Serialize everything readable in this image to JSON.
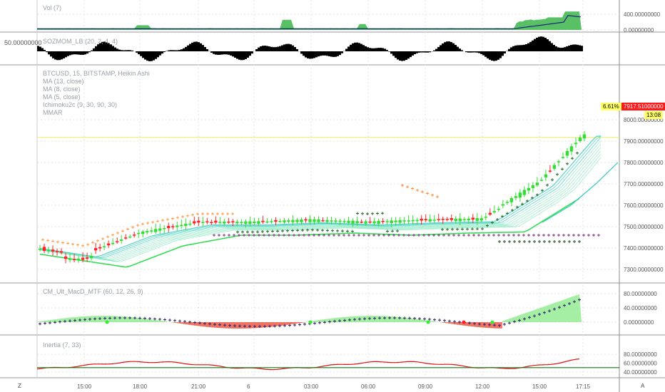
{
  "panels": {
    "vol": {
      "title": "Vol (7)",
      "ticks": [
        "400.00000000",
        "0.00000000"
      ]
    },
    "sozmom": {
      "title": "SOZMOM_LB (20, 2, 4, 4)",
      "left_value": "50.00000000"
    },
    "main": {
      "symbol": "BTCUSD, 15, BITSTAMP, Heikin Ashi",
      "indicators": [
        "MA (13, close)",
        "MA (8, close)",
        "MA (5, close)",
        "Ichimoku2c (9, 30, 90, 30)",
        "MMAR"
      ],
      "ticks": [
        "8000.00000000",
        "7900.00000000",
        "7800.00000000",
        "7700.00000000",
        "7600.00000000",
        "7500.00000000",
        "7400.00000000",
        "7300.00000000"
      ],
      "pct_change": "6.61%",
      "last_price": "7917.51000000",
      "countdown": "13:08"
    },
    "macd": {
      "title": "CM_Ult_MacD_MTF (60, 12, 26, 9)",
      "ticks": [
        "80.00000000",
        "40.00000000",
        "0.00000000"
      ]
    },
    "inertia": {
      "title": "Inertia (7, 33)",
      "ticks": [
        "80.00000000",
        "60.00000000",
        "40.00000000"
      ]
    }
  },
  "time_axis": [
    "15:00",
    "18:00",
    "21:00",
    "6",
    "03:00",
    "06:00",
    "09:00",
    "12:00",
    "15:00",
    "17:15"
  ],
  "corner_left": "Z",
  "corner_right": "A",
  "colors": {
    "up": "#33dd33",
    "down": "#ff2222",
    "gridline": "#e3e3e3",
    "sep": "#9a9a9a",
    "price_tag": "#ff1a1a",
    "pct_tag": "#ffff66"
  },
  "chart_data": [
    {
      "type": "line",
      "name": "price",
      "y_range": [
        7260,
        8060
      ],
      "x": [
        "15:00",
        "18:00",
        "21:00",
        "6",
        "03:00",
        "06:00",
        "09:00",
        "12:00",
        "15:00",
        "17:15"
      ],
      "values": [
        7370,
        7470,
        7520,
        7520,
        7530,
        7520,
        7530,
        7535,
        7700,
        7917.51
      ]
    },
    {
      "type": "area",
      "name": "Vol (7)",
      "y_range": [
        0,
        500
      ],
      "x": [
        "15:00",
        "06:00",
        "15:00",
        "17:15"
      ],
      "values": [
        30,
        100,
        470,
        380
      ]
    },
    {
      "type": "line",
      "name": "Inertia (7, 33)",
      "y_range": [
        35,
        85
      ],
      "x": [
        "15:00",
        "18:00",
        "21:00",
        "6",
        "03:00",
        "06:00",
        "09:00",
        "12:00",
        "15:00",
        "17:15"
      ],
      "values": [
        47,
        60,
        64,
        57,
        60,
        62,
        58,
        57,
        67,
        71
      ]
    }
  ]
}
